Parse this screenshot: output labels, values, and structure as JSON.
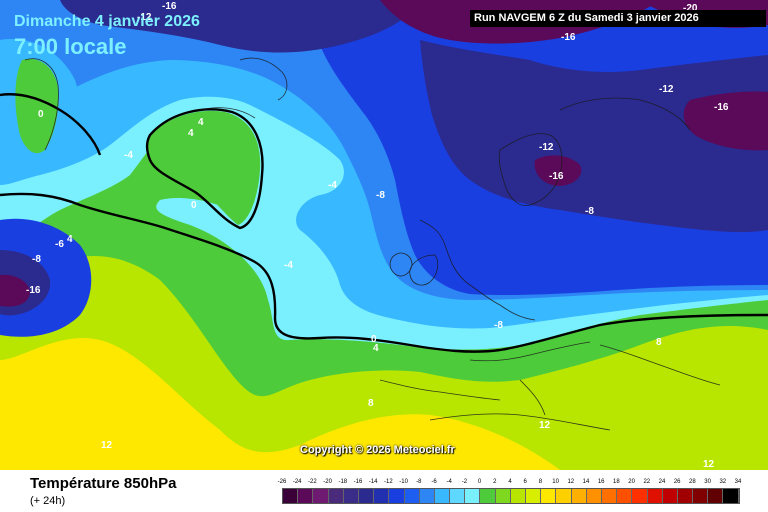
{
  "header": {
    "date_title": "Dimanche 4 janvier 2026",
    "time_title": "7:00 locale",
    "run_info": "Run NAVGEM 6 Z du Samedi 3 janvier 2026"
  },
  "copyright": "Copyright © 2026 Meteociel.fr",
  "footer": {
    "variable": "Température 850hPa",
    "lead": "(+ 24h)"
  },
  "colors": {
    "very_cold": "#5a0a58",
    "cold_dark": "#2b2a8f",
    "blue": "#1a3fe0",
    "mid_blue": "#2e86f5",
    "light_blue": "#38b8ff",
    "cyan": "#7af0ff",
    "green": "#4ecb3a",
    "yellow_green": "#b8e600",
    "yellow": "#ffe800",
    "orange": "#ffb000"
  },
  "legend": {
    "ticks": [
      "-26",
      "-24",
      "-22",
      "-20",
      "-18",
      "-16",
      "-14",
      "-12",
      "-10",
      "-8",
      "-6",
      "-4",
      "-2",
      "0",
      "2",
      "4",
      "6",
      "8",
      "10",
      "12",
      "14",
      "16",
      "18",
      "20",
      "22",
      "24",
      "26",
      "28",
      "30",
      "32",
      "34"
    ],
    "swatch_colors": [
      "#3a0038",
      "#5a0a58",
      "#6e1a70",
      "#4a2a7a",
      "#3a2d8a",
      "#2b2a8f",
      "#2030b0",
      "#1a3fe0",
      "#1d5ef0",
      "#2e86f5",
      "#38b8ff",
      "#5fd8ff",
      "#7af0ff",
      "#4ecb3a",
      "#7fd820",
      "#b8e600",
      "#d8ee00",
      "#ffe800",
      "#ffd000",
      "#ffb000",
      "#ff9000",
      "#ff7000",
      "#ff5000",
      "#ff3000",
      "#e01000",
      "#c00000",
      "#a00000",
      "#800000",
      "#600000",
      "#000000"
    ]
  },
  "isotherm_labels": [
    "-16",
    "-12",
    "-20",
    "-16",
    "-12",
    "-16",
    "4",
    "4",
    "-4",
    "0",
    "-12",
    "-6",
    "-4",
    "-16",
    "-4",
    "-8",
    "-16",
    "-8",
    "0",
    "4",
    "-8",
    "8",
    "12",
    "4",
    "0",
    "12",
    "12",
    "-8",
    "8"
  ]
}
